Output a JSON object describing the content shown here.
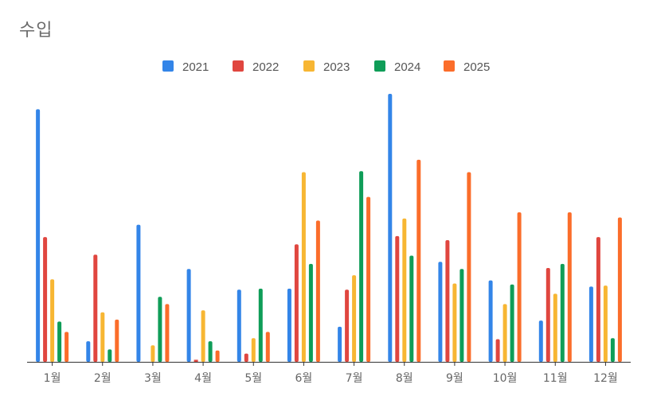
{
  "chart_data": {
    "type": "bar",
    "title": "수입",
    "xlabel": "",
    "ylabel": "",
    "ylim": [
      0,
      270
    ],
    "grid": false,
    "legend_position": "top-center",
    "categories": [
      "1월",
      "2월",
      "3월",
      "4월",
      "5월",
      "6월",
      "7월",
      "8월",
      "9월",
      "10월",
      "11월",
      "12월"
    ],
    "series": [
      {
        "name": "2021",
        "color": "#3385e8",
        "values": [
          245,
          20,
          133,
          90,
          70,
          71,
          34,
          260,
          97,
          79,
          40,
          73
        ]
      },
      {
        "name": "2022",
        "color": "#e0463f",
        "values": [
          121,
          104,
          0,
          2,
          8,
          114,
          70,
          122,
          118,
          22,
          91,
          121
        ]
      },
      {
        "name": "2023",
        "color": "#f7b633",
        "values": [
          80,
          48,
          16,
          50,
          23,
          184,
          84,
          139,
          76,
          56,
          66,
          74
        ]
      },
      {
        "name": "2024",
        "color": "#0f9d58",
        "values": [
          39,
          12,
          63,
          20,
          71,
          95,
          185,
          103,
          90,
          75,
          95,
          23
        ]
      },
      {
        "name": "2025",
        "color": "#fb6d2a",
        "values": [
          29,
          41,
          56,
          11,
          29,
          137,
          160,
          196,
          184,
          145,
          145,
          140
        ]
      }
    ]
  }
}
